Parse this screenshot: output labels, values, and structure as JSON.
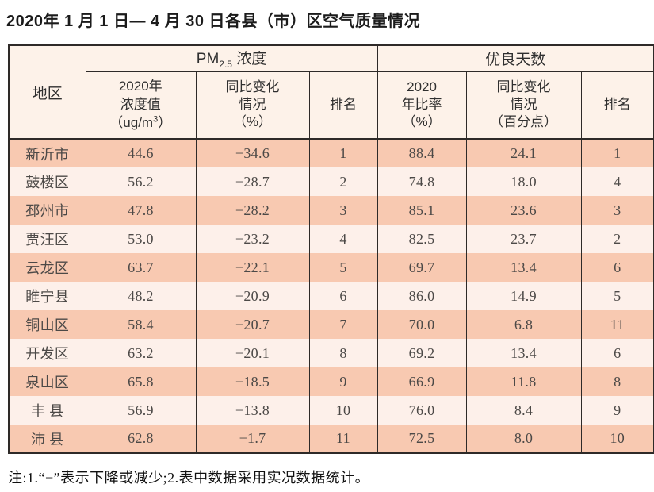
{
  "page": {
    "title": "2020年 1 月 1 日— 4 月 30 日各县（市）区空气质量情况",
    "note": "注:1.“−”表示下降或减少;2.表中数据采用实况数据统计。"
  },
  "colors": {
    "row_odd_bg": "#f8c9b1",
    "row_even_bg": "#fdf0ea",
    "header_bg": "#fdf2e9",
    "border": "#2e2a28",
    "data_text": "#4c4947"
  },
  "table": {
    "header": {
      "region": "地区",
      "pm_group": {
        "prefix": "PM",
        "sub": "2.5",
        "suffix": " 浓度"
      },
      "good_group": "优良天数",
      "sub_headers": {
        "pm_value": {
          "line1": "2020年",
          "line2": "浓度值",
          "line3_pre": "（ug/m",
          "line3_sup": "3",
          "line3_post": "）"
        },
        "pm_change": {
          "line1": "同比变化",
          "line2": "情况",
          "line3": "（%）"
        },
        "pm_rank": "排名",
        "good_rate": {
          "line1": "2020",
          "line2": "年比率",
          "line3": "（%）"
        },
        "good_change": {
          "line1": "同比变化",
          "line2": "情况",
          "line3": "（百分点）"
        },
        "good_rank": "排名"
      }
    },
    "rows": [
      {
        "region": "新沂市",
        "pm_value": "44.6",
        "pm_change": "−34.6",
        "pm_rank": "1",
        "good_rate": "88.4",
        "good_change": "24.1",
        "good_rank": "1"
      },
      {
        "region": "鼓楼区",
        "pm_value": "56.2",
        "pm_change": "−28.7",
        "pm_rank": "2",
        "good_rate": "74.8",
        "good_change": "18.0",
        "good_rank": "4"
      },
      {
        "region": "邳州市",
        "pm_value": "47.8",
        "pm_change": "−28.2",
        "pm_rank": "3",
        "good_rate": "85.1",
        "good_change": "23.6",
        "good_rank": "3"
      },
      {
        "region": "贾汪区",
        "pm_value": "53.0",
        "pm_change": "−23.2",
        "pm_rank": "4",
        "good_rate": "82.5",
        "good_change": "23.7",
        "good_rank": "2"
      },
      {
        "region": "云龙区",
        "pm_value": "63.7",
        "pm_change": "−22.1",
        "pm_rank": "5",
        "good_rate": "69.7",
        "good_change": "13.4",
        "good_rank": "6"
      },
      {
        "region": "睢宁县",
        "pm_value": "48.2",
        "pm_change": "−20.9",
        "pm_rank": "6",
        "good_rate": "86.0",
        "good_change": "14.9",
        "good_rank": "5"
      },
      {
        "region": "铜山区",
        "pm_value": "58.4",
        "pm_change": "−20.7",
        "pm_rank": "7",
        "good_rate": "70.0",
        "good_change": "6.8",
        "good_rank": "11"
      },
      {
        "region": "开发区",
        "pm_value": "63.2",
        "pm_change": "−20.1",
        "pm_rank": "8",
        "good_rate": "69.2",
        "good_change": "13.4",
        "good_rank": "6"
      },
      {
        "region": "泉山区",
        "pm_value": "65.8",
        "pm_change": "−18.5",
        "pm_rank": "9",
        "good_rate": "66.9",
        "good_change": "11.8",
        "good_rank": "8"
      },
      {
        "region": "丰 县",
        "pm_value": "56.9",
        "pm_change": "−13.8",
        "pm_rank": "10",
        "good_rate": "76.0",
        "good_change": "8.4",
        "good_rank": "9"
      },
      {
        "region": "沛 县",
        "pm_value": "62.8",
        "pm_change": "−1.7",
        "pm_rank": "11",
        "good_rate": "72.5",
        "good_change": "8.0",
        "good_rank": "10"
      }
    ]
  }
}
